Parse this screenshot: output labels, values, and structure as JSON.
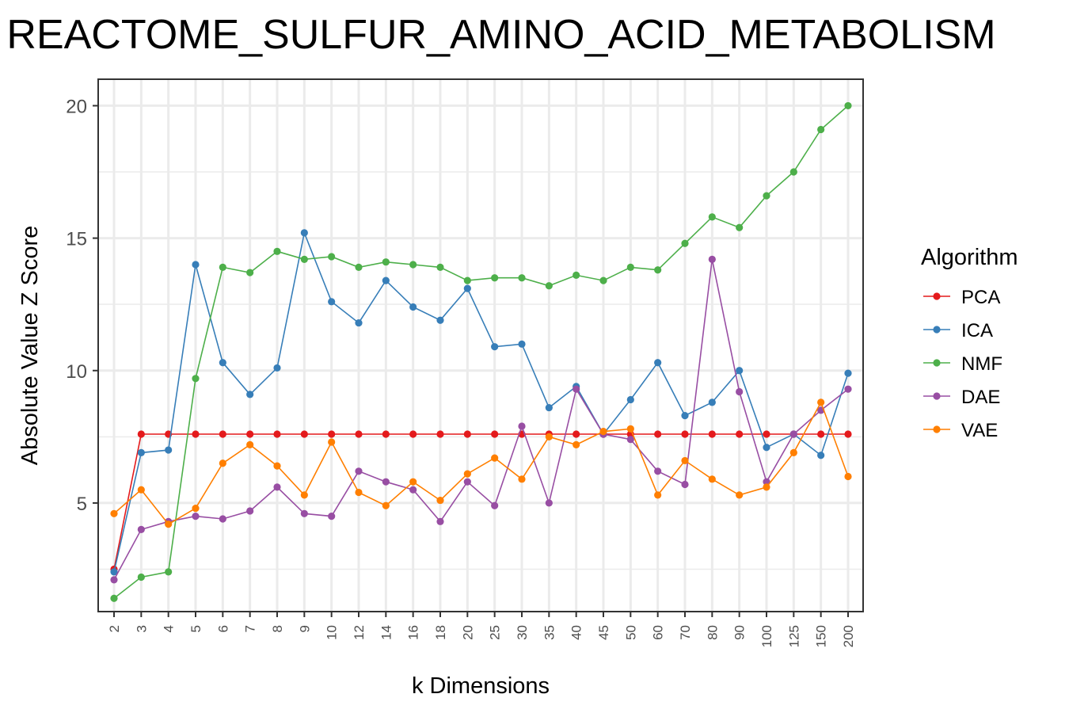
{
  "chart_data": {
    "type": "line",
    "title": "REACTOME_SULFUR_AMINO_ACID_METABOLISM",
    "xlabel": "k Dimensions",
    "ylabel": "Absolute Value Z Score",
    "categories": [
      "2",
      "3",
      "4",
      "5",
      "6",
      "7",
      "8",
      "9",
      "10",
      "12",
      "14",
      "16",
      "18",
      "20",
      "25",
      "30",
      "35",
      "40",
      "45",
      "50",
      "60",
      "70",
      "80",
      "90",
      "100",
      "125",
      "150",
      "200"
    ],
    "ylim": [
      0.9,
      21
    ],
    "yticks": [
      "5",
      "10",
      "15",
      "20"
    ],
    "grid": true,
    "legend": {
      "title": "Algorithm",
      "position": "right"
    },
    "series": [
      {
        "name": "PCA",
        "color": "#e41a1c",
        "values": [
          2.5,
          7.6,
          7.6,
          7.6,
          7.6,
          7.6,
          7.6,
          7.6,
          7.6,
          7.6,
          7.6,
          7.6,
          7.6,
          7.6,
          7.6,
          7.6,
          7.6,
          7.6,
          7.6,
          7.6,
          7.6,
          7.6,
          7.6,
          7.6,
          7.6,
          7.6,
          7.6,
          7.6
        ]
      },
      {
        "name": "ICA",
        "color": "#377eb8",
        "values": [
          2.4,
          6.9,
          7.0,
          14.0,
          10.3,
          9.1,
          10.1,
          15.2,
          12.6,
          11.8,
          13.4,
          12.4,
          11.9,
          13.1,
          10.9,
          11.0,
          8.6,
          9.4,
          7.6,
          8.9,
          10.3,
          8.3,
          8.8,
          10.0,
          7.1,
          7.6,
          6.8,
          9.9
        ]
      },
      {
        "name": "NMF",
        "color": "#4daf4a",
        "values": [
          1.4,
          2.2,
          2.4,
          9.7,
          13.9,
          13.7,
          14.5,
          14.2,
          14.3,
          13.9,
          14.1,
          14.0,
          13.9,
          13.4,
          13.5,
          13.5,
          13.2,
          13.6,
          13.4,
          13.9,
          13.8,
          14.8,
          15.8,
          15.4,
          16.6,
          17.5,
          19.1,
          20.0
        ]
      },
      {
        "name": "DAE",
        "color": "#984ea3",
        "values": [
          2.1,
          4.0,
          4.3,
          4.5,
          4.4,
          4.7,
          5.6,
          4.6,
          4.5,
          6.2,
          5.8,
          5.5,
          4.3,
          5.8,
          4.9,
          7.9,
          5.0,
          9.3,
          7.6,
          7.4,
          6.2,
          5.7,
          14.2,
          9.2,
          5.8,
          7.6,
          8.5,
          9.3
        ]
      },
      {
        "name": "VAE",
        "color": "#ff7f00",
        "values": [
          4.6,
          5.5,
          4.2,
          4.8,
          6.5,
          7.2,
          6.4,
          5.3,
          7.3,
          5.4,
          4.9,
          5.8,
          5.1,
          6.1,
          6.7,
          5.9,
          7.5,
          7.2,
          7.7,
          7.8,
          5.3,
          6.6,
          5.9,
          5.3,
          5.6,
          6.9,
          8.8,
          6.0
        ]
      }
    ]
  }
}
